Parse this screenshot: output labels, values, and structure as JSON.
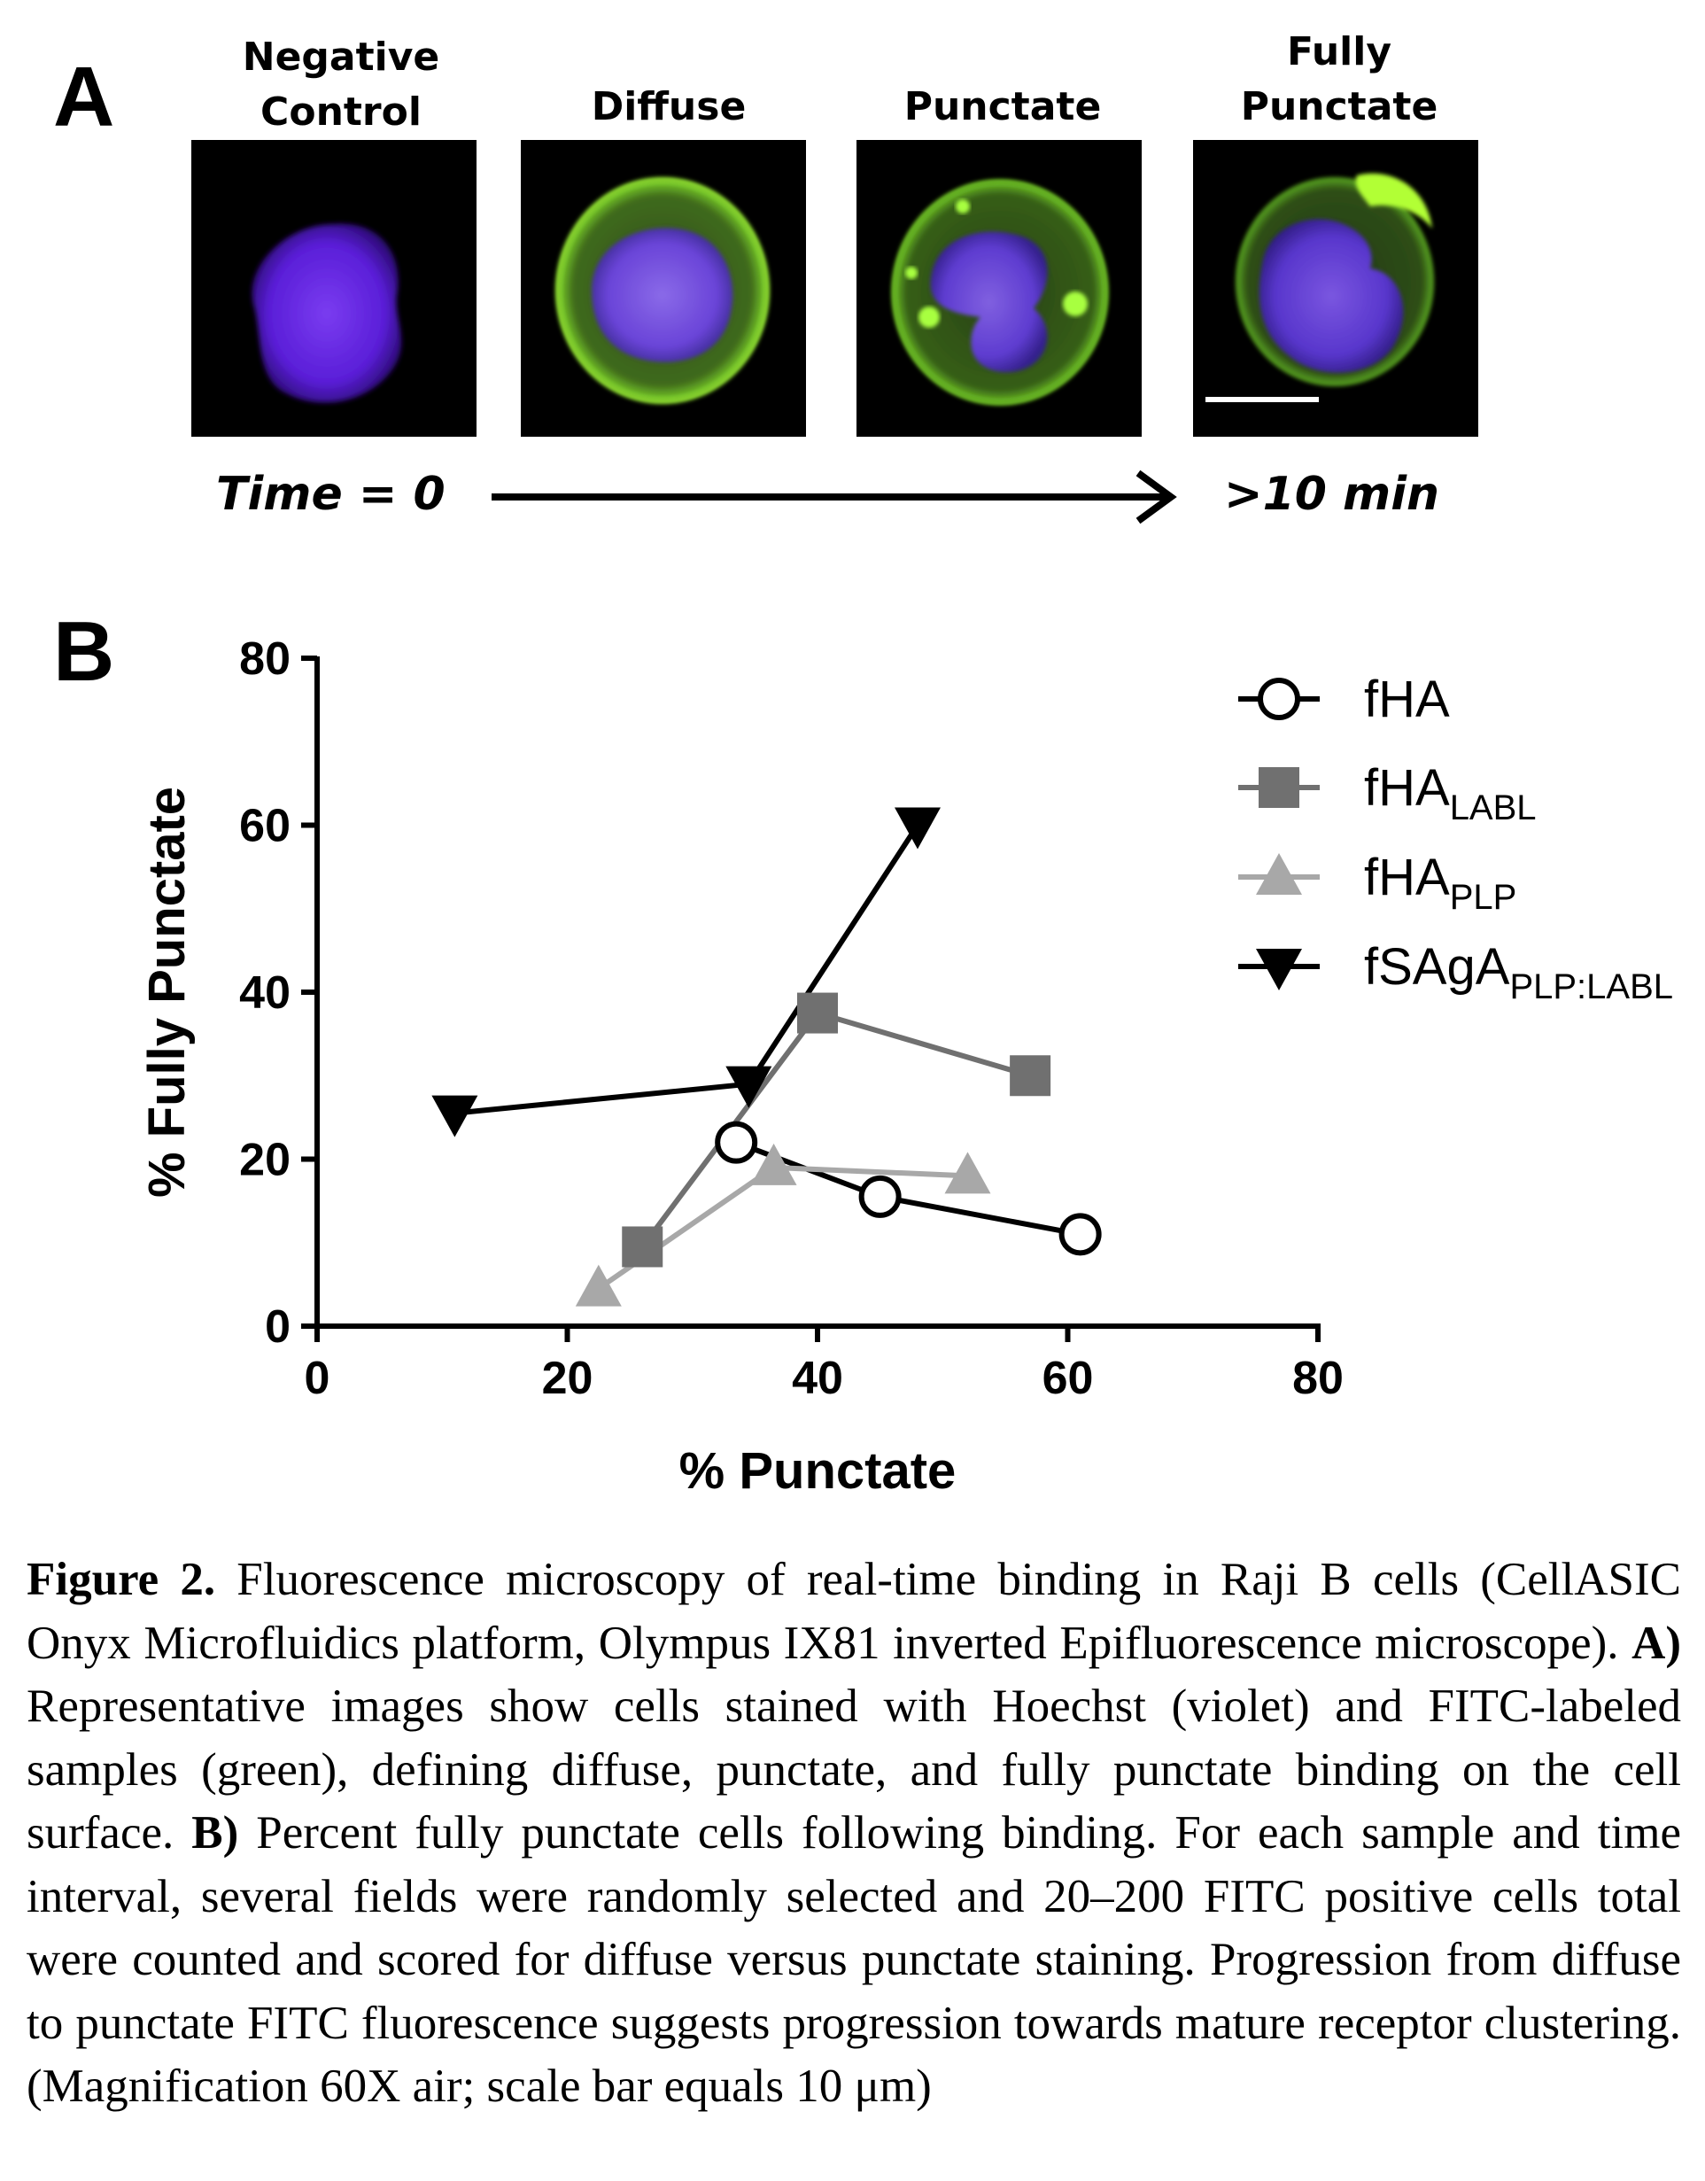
{
  "panel_a": {
    "letter": "A",
    "columns": [
      {
        "label_lines": [
          "Negative",
          "Control"
        ],
        "label": "Negative Control"
      },
      {
        "label_lines": [
          "Diffuse"
        ],
        "label": "Diffuse"
      },
      {
        "label_lines": [
          "Punctate"
        ],
        "label": "Punctate"
      },
      {
        "label_lines": [
          "Fully",
          "Punctate"
        ],
        "label": "Fully Punctate"
      }
    ],
    "time_start": "Time = 0",
    "time_end": ">10 min"
  },
  "panel_b": {
    "letter": "B"
  },
  "chart_data": {
    "type": "line",
    "xlabel": "% Punctate",
    "ylabel": "% Fully Punctate",
    "xlim": [
      0,
      80
    ],
    "ylim": [
      0,
      80
    ],
    "xticks": [
      0,
      20,
      40,
      60,
      80
    ],
    "yticks": [
      0,
      20,
      40,
      60,
      80
    ],
    "grid": false,
    "legend_position": "top-right",
    "series": [
      {
        "name": "fHA",
        "name_base": "fHA",
        "name_sub": "",
        "marker": "open-circle",
        "color": "#000000",
        "points": [
          [
            33.5,
            22
          ],
          [
            45,
            15.5
          ],
          [
            61,
            11
          ]
        ]
      },
      {
        "name": "fHA_LABL",
        "name_base": "fHA",
        "name_sub": "LABL",
        "marker": "square",
        "color": "#707070",
        "points": [
          [
            26,
            9.5
          ],
          [
            40,
            37.5
          ],
          [
            57,
            30
          ]
        ]
      },
      {
        "name": "fHA_PLP",
        "name_base": "fHA",
        "name_sub": "PLP",
        "marker": "triangle-up",
        "color": "#a8a8a8",
        "points": [
          [
            22.5,
            4.5
          ],
          [
            36.5,
            19
          ],
          [
            52,
            18
          ]
        ]
      },
      {
        "name": "fSAgA_PLP:LABL",
        "name_base": "fSAgA",
        "name_sub": "PLP:LABL",
        "marker": "triangle-down",
        "color": "#000000",
        "points": [
          [
            11,
            25.5
          ],
          [
            34.5,
            29
          ],
          [
            48,
            60
          ]
        ]
      }
    ]
  },
  "caption": {
    "figure_label": "Figure 2.",
    "part1": " Fluorescence microscopy of real-time binding in Raji B cells (CellASIC Onyx Microfluidics platform, Olympus IX81 inverted Epifluorescence microscope). ",
    "label_a": "A)",
    "part2": " Representative images show cells stained with Hoechst (violet) and FITC-labeled samples (green), defining diffuse, punctate, and fully punctate binding on the cell surface. ",
    "label_b": "B)",
    "part3": " Percent fully punctate cells following binding. For each sample and time interval, several fields were randomly selected and 20–200 FITC positive cells total were counted and scored for diffuse versus punctate staining. Progression from diffuse to punctate FITC fluorescence suggests progression towards mature receptor clustering. (Magnification 60X air; scale bar equals 10 μm)"
  }
}
